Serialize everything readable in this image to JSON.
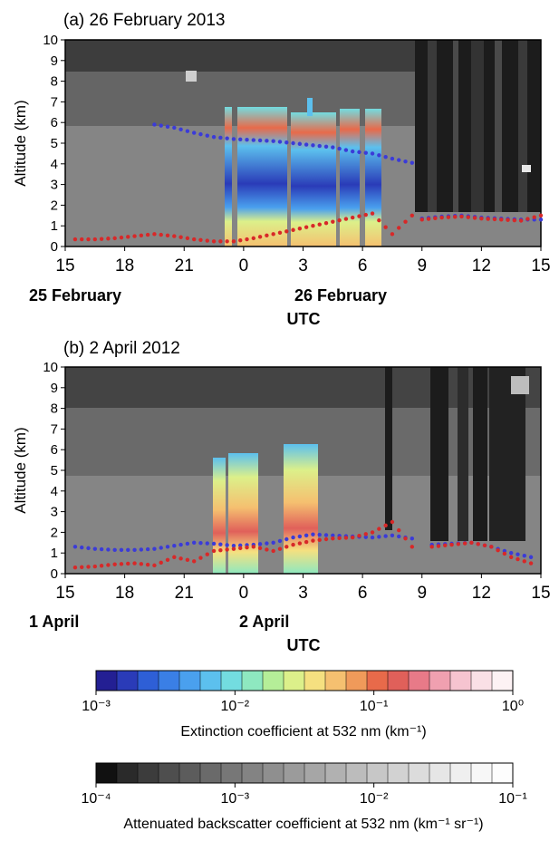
{
  "panels": [
    {
      "title": "(a) 26 February 2013",
      "ylabel": "Altitude (km)",
      "xlabel": "UTC",
      "yticks": [
        "0",
        "1",
        "2",
        "3",
        "4",
        "5",
        "6",
        "7",
        "8",
        "9",
        "10"
      ],
      "xticks": [
        "15",
        "18",
        "21",
        "0",
        "3",
        "6",
        "9",
        "12",
        "15"
      ],
      "date_labels": [
        "25 February",
        "26 February"
      ]
    },
    {
      "title": "(b) 2 April 2012",
      "ylabel": "Altitude (km)",
      "xlabel": "UTC",
      "yticks": [
        "0",
        "1",
        "2",
        "3",
        "4",
        "5",
        "6",
        "7",
        "8",
        "9",
        "10"
      ],
      "xticks": [
        "15",
        "18",
        "21",
        "0",
        "3",
        "6",
        "9",
        "12",
        "15"
      ],
      "date_labels": [
        "1 April",
        "2 April"
      ]
    }
  ],
  "colorbars": [
    {
      "label": "Extinction coefficient at 532 nm (km⁻¹)",
      "tick_labels": [
        "10⁻³",
        "10⁻²",
        "10⁻¹",
        "10⁰"
      ],
      "colors": [
        "#231f93",
        "#2a3bb8",
        "#2e5fd6",
        "#3a7fe6",
        "#4aa0ee",
        "#5cc0ee",
        "#73dce0",
        "#8ee8c0",
        "#b5ee98",
        "#dcf08a",
        "#f5e080",
        "#f5c070",
        "#f09a5a",
        "#e86a4a",
        "#e0605a",
        "#e87a88",
        "#f0a0b0",
        "#f6c4d0",
        "#fae0e6",
        "#fdf2f4"
      ]
    },
    {
      "label": "Attenuated backscatter coefficient at 532 nm (km⁻¹ sr⁻¹)",
      "tick_labels": [
        "10⁻⁴",
        "10⁻³",
        "10⁻²",
        "10⁻¹"
      ],
      "colors": [
        "#111111",
        "#2a2a2a",
        "#3c3c3c",
        "#4e4e4e",
        "#5c5c5c",
        "#6a6a6a",
        "#777777",
        "#838383",
        "#8f8f8f",
        "#9b9b9b",
        "#a6a6a6",
        "#b1b1b1",
        "#bcbcbc",
        "#c7c7c7",
        "#d2d2d2",
        "#dcdcdc",
        "#e6e6e6",
        "#efefef",
        "#f7f7f7",
        "#fdfdfd"
      ]
    }
  ],
  "chart_data": [
    {
      "type": "heatmap",
      "title": "(a) 26 February 2013",
      "xlabel": "UTC",
      "ylabel": "Altitude (km)",
      "x_range_hours": [
        15,
        39
      ],
      "ylim": [
        0,
        10
      ],
      "series": [
        {
          "color": "#3b3bd8",
          "x": [
            19.5,
            20.5,
            21.5,
            22.5,
            23.5,
            24.5,
            25.5,
            26.5,
            27.5,
            28.5,
            29.5,
            30.5,
            31.5,
            32.5
          ],
          "y": [
            5.9,
            5.75,
            5.5,
            5.3,
            5.2,
            5.15,
            5.1,
            5.0,
            4.9,
            4.8,
            4.6,
            4.5,
            4.25,
            4.05
          ]
        },
        {
          "color": "#d82828",
          "x": [
            15.5,
            16.5,
            17.5,
            18.5,
            19.5,
            20.5,
            21.5,
            22.5,
            23.5,
            24.5,
            25.5,
            26.5,
            27.5,
            28.5,
            29.5,
            30.5,
            31.5,
            32.5
          ],
          "y": [
            0.35,
            0.35,
            0.4,
            0.5,
            0.6,
            0.5,
            0.35,
            0.25,
            0.25,
            0.4,
            0.6,
            0.8,
            1.0,
            1.2,
            1.4,
            1.6,
            0.6,
            1.5
          ]
        },
        {
          "color": "#3b3bd8",
          "x": [
            33,
            34,
            35,
            36,
            37,
            38,
            39
          ],
          "y": [
            1.35,
            1.45,
            1.5,
            1.4,
            1.35,
            1.3,
            1.3
          ]
        },
        {
          "color": "#d82828",
          "x": [
            33,
            34,
            35,
            36,
            37,
            38,
            39
          ],
          "y": [
            1.3,
            1.4,
            1.45,
            1.35,
            1.3,
            1.25,
            1.5
          ]
        }
      ]
    },
    {
      "type": "heatmap",
      "title": "(b) 2 April 2012",
      "xlabel": "UTC",
      "ylabel": "Altitude (km)",
      "x_range_hours": [
        15,
        39
      ],
      "ylim": [
        0,
        10
      ],
      "series": [
        {
          "color": "#3b3bd8",
          "x": [
            15.5,
            16.5,
            17.5,
            18.5,
            19.5,
            20.5,
            21.5,
            22.5,
            23.5,
            24.5,
            25.5,
            26.5,
            27.5,
            28.5,
            29.5,
            30.5,
            31.5,
            32.5
          ],
          "y": [
            1.3,
            1.2,
            1.15,
            1.15,
            1.2,
            1.35,
            1.5,
            1.45,
            1.35,
            1.4,
            1.5,
            1.75,
            1.9,
            1.85,
            1.8,
            1.75,
            1.85,
            1.7
          ]
        },
        {
          "color": "#d82828",
          "x": [
            15.5,
            16.5,
            17.5,
            18.5,
            19.5,
            20.5,
            21.5,
            22.5,
            23.5,
            24.5,
            25.5,
            26.5,
            27.5,
            28.5,
            29.5,
            30.5,
            31.5,
            32.5
          ],
          "y": [
            0.3,
            0.35,
            0.45,
            0.5,
            0.4,
            0.8,
            0.6,
            1.1,
            1.2,
            1.3,
            1.1,
            1.4,
            1.6,
            1.7,
            1.75,
            2.0,
            2.5,
            1.3
          ]
        },
        {
          "color": "#3b3bd8",
          "x": [
            33.5,
            34.5,
            35.5,
            36.5,
            37.5,
            38.5
          ],
          "y": [
            1.4,
            1.45,
            1.5,
            1.3,
            1.0,
            0.8
          ]
        },
        {
          "color": "#d82828",
          "x": [
            33.5,
            34.5,
            35.5,
            36.5,
            37.5,
            38.5
          ],
          "y": [
            1.3,
            1.4,
            1.5,
            1.3,
            0.8,
            0.5
          ]
        }
      ]
    }
  ]
}
